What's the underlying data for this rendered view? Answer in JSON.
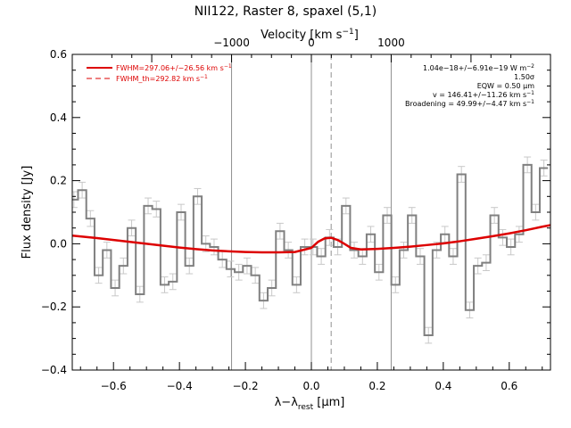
{
  "chart_data": {
    "type": "line",
    "title": "NII122, Raster 8, spaxel (5,1)",
    "xlabel": "λ−λ",
    "xlabel_sub": "rest",
    "xlabel_unit": " [μm]",
    "ylabel": "Flux density [Jy]",
    "top_axis_label": "Velocity [km s",
    "top_axis_label_sup": "−1",
    "top_axis_label_end": "]",
    "xlim": [
      -0.725,
      0.725
    ],
    "ylim": [
      -0.4,
      0.6
    ],
    "x_ticks": [
      -0.6,
      -0.4,
      -0.2,
      0.0,
      0.2,
      0.4,
      0.6
    ],
    "x_tick_labels": [
      "−0.6",
      "−0.4",
      "−0.2",
      "0.0",
      "0.2",
      "0.4",
      "0.6"
    ],
    "y_ticks": [
      -0.4,
      -0.2,
      0.0,
      0.2,
      0.4,
      0.6
    ],
    "y_tick_labels": [
      "−0.4",
      "−0.2",
      "0.0",
      "0.2",
      "0.4",
      "0.6"
    ],
    "top_ticks": [
      -1000,
      0,
      1000
    ],
    "top_tick_labels": [
      "−1000",
      "0",
      "1000"
    ],
    "um_per_kms": 0.000242,
    "reference_lines": [
      {
        "x": -0.242,
        "style": "solid"
      },
      {
        "x": 0.0,
        "style": "solid"
      },
      {
        "x": 0.242,
        "style": "solid"
      },
      {
        "x": 0.06,
        "style": "dashed"
      }
    ],
    "series": [
      {
        "name": "data",
        "style": "step",
        "color": "#808080",
        "x": [
          -0.72,
          -0.695,
          -0.67,
          -0.645,
          -0.62,
          -0.595,
          -0.57,
          -0.545,
          -0.52,
          -0.495,
          -0.47,
          -0.445,
          -0.42,
          -0.395,
          -0.37,
          -0.345,
          -0.32,
          -0.295,
          -0.27,
          -0.245,
          -0.22,
          -0.195,
          -0.17,
          -0.145,
          -0.12,
          -0.095,
          -0.07,
          -0.045,
          -0.02,
          0.005,
          0.03,
          0.055,
          0.08,
          0.105,
          0.13,
          0.155,
          0.18,
          0.205,
          0.23,
          0.255,
          0.28,
          0.305,
          0.33,
          0.355,
          0.38,
          0.405,
          0.43,
          0.455,
          0.48,
          0.505,
          0.53,
          0.555,
          0.58,
          0.605,
          0.63,
          0.655,
          0.68,
          0.705
        ],
        "y": [
          0.14,
          0.17,
          0.08,
          -0.1,
          -0.02,
          -0.14,
          -0.07,
          0.05,
          -0.16,
          0.12,
          0.11,
          -0.13,
          -0.12,
          0.1,
          -0.07,
          0.15,
          0.0,
          -0.01,
          -0.05,
          -0.08,
          -0.09,
          -0.07,
          -0.1,
          -0.18,
          -0.14,
          0.04,
          -0.02,
          -0.13,
          -0.01,
          -0.01,
          -0.04,
          0.02,
          -0.01,
          0.12,
          -0.02,
          -0.04,
          0.03,
          -0.09,
          0.09,
          -0.13,
          -0.02,
          0.09,
          -0.04,
          -0.29,
          -0.02,
          0.03,
          -0.04,
          0.22,
          -0.21,
          -0.07,
          -0.06,
          0.09,
          0.02,
          -0.01,
          0.03,
          0.25,
          0.1,
          0.24
        ],
        "err": [
          0.025,
          0.025,
          0.025,
          0.025,
          0.025,
          0.025,
          0.025,
          0.025,
          0.025,
          0.025,
          0.025,
          0.025,
          0.025,
          0.025,
          0.025,
          0.025,
          0.025,
          0.025,
          0.025,
          0.025,
          0.025,
          0.025,
          0.025,
          0.025,
          0.025,
          0.025,
          0.025,
          0.025,
          0.025,
          0.025,
          0.025,
          0.025,
          0.025,
          0.025,
          0.025,
          0.025,
          0.025,
          0.025,
          0.025,
          0.025,
          0.025,
          0.025,
          0.025,
          0.025,
          0.025,
          0.025,
          0.025,
          0.025,
          0.025,
          0.025,
          0.025,
          0.025,
          0.025,
          0.025,
          0.025,
          0.025,
          0.025,
          0.025
        ]
      },
      {
        "name": "FWHM=297.06+/−26.56 km s",
        "name_sup": "−1",
        "style": "line",
        "color": "#dd0000",
        "x": [
          -0.725,
          -0.65,
          -0.6,
          -0.55,
          -0.5,
          -0.45,
          -0.4,
          -0.35,
          -0.3,
          -0.25,
          -0.2,
          -0.15,
          -0.1,
          -0.05,
          0.0,
          0.02,
          0.04,
          0.06,
          0.08,
          0.1,
          0.12,
          0.15,
          0.2,
          0.25,
          0.3,
          0.35,
          0.4,
          0.45,
          0.5,
          0.55,
          0.6,
          0.65,
          0.7,
          0.725
        ],
        "y": [
          0.026,
          0.018,
          0.012,
          0.006,
          0.0,
          -0.006,
          -0.012,
          -0.017,
          -0.021,
          -0.024,
          -0.026,
          -0.027,
          -0.027,
          -0.026,
          -0.013,
          0.006,
          0.017,
          0.019,
          0.012,
          0.0,
          -0.013,
          -0.018,
          -0.016,
          -0.013,
          -0.009,
          -0.004,
          0.001,
          0.008,
          0.016,
          0.024,
          0.033,
          0.043,
          0.054,
          0.059
        ]
      },
      {
        "name": "FWHM_th=292.82 km s",
        "name_sup": "−1",
        "style": "dashed",
        "color": "#dd0000",
        "x": [],
        "y": []
      }
    ],
    "legend_position": "top-left",
    "annotations": [
      {
        "text": "1.04e−18+/−6.91e−19 W m",
        "sup": "−2"
      },
      {
        "text": "1.50σ",
        "sup": ""
      },
      {
        "text": "EQW = 0.50 μm",
        "sup": ""
      },
      {
        "text": "v = 146.41+/−11.26 km s",
        "sup": "−1"
      },
      {
        "text": "Broadening = 49.99+/−4.47 km s",
        "sup": "−1"
      }
    ],
    "annotation_position": "top-right",
    "grid": false
  }
}
